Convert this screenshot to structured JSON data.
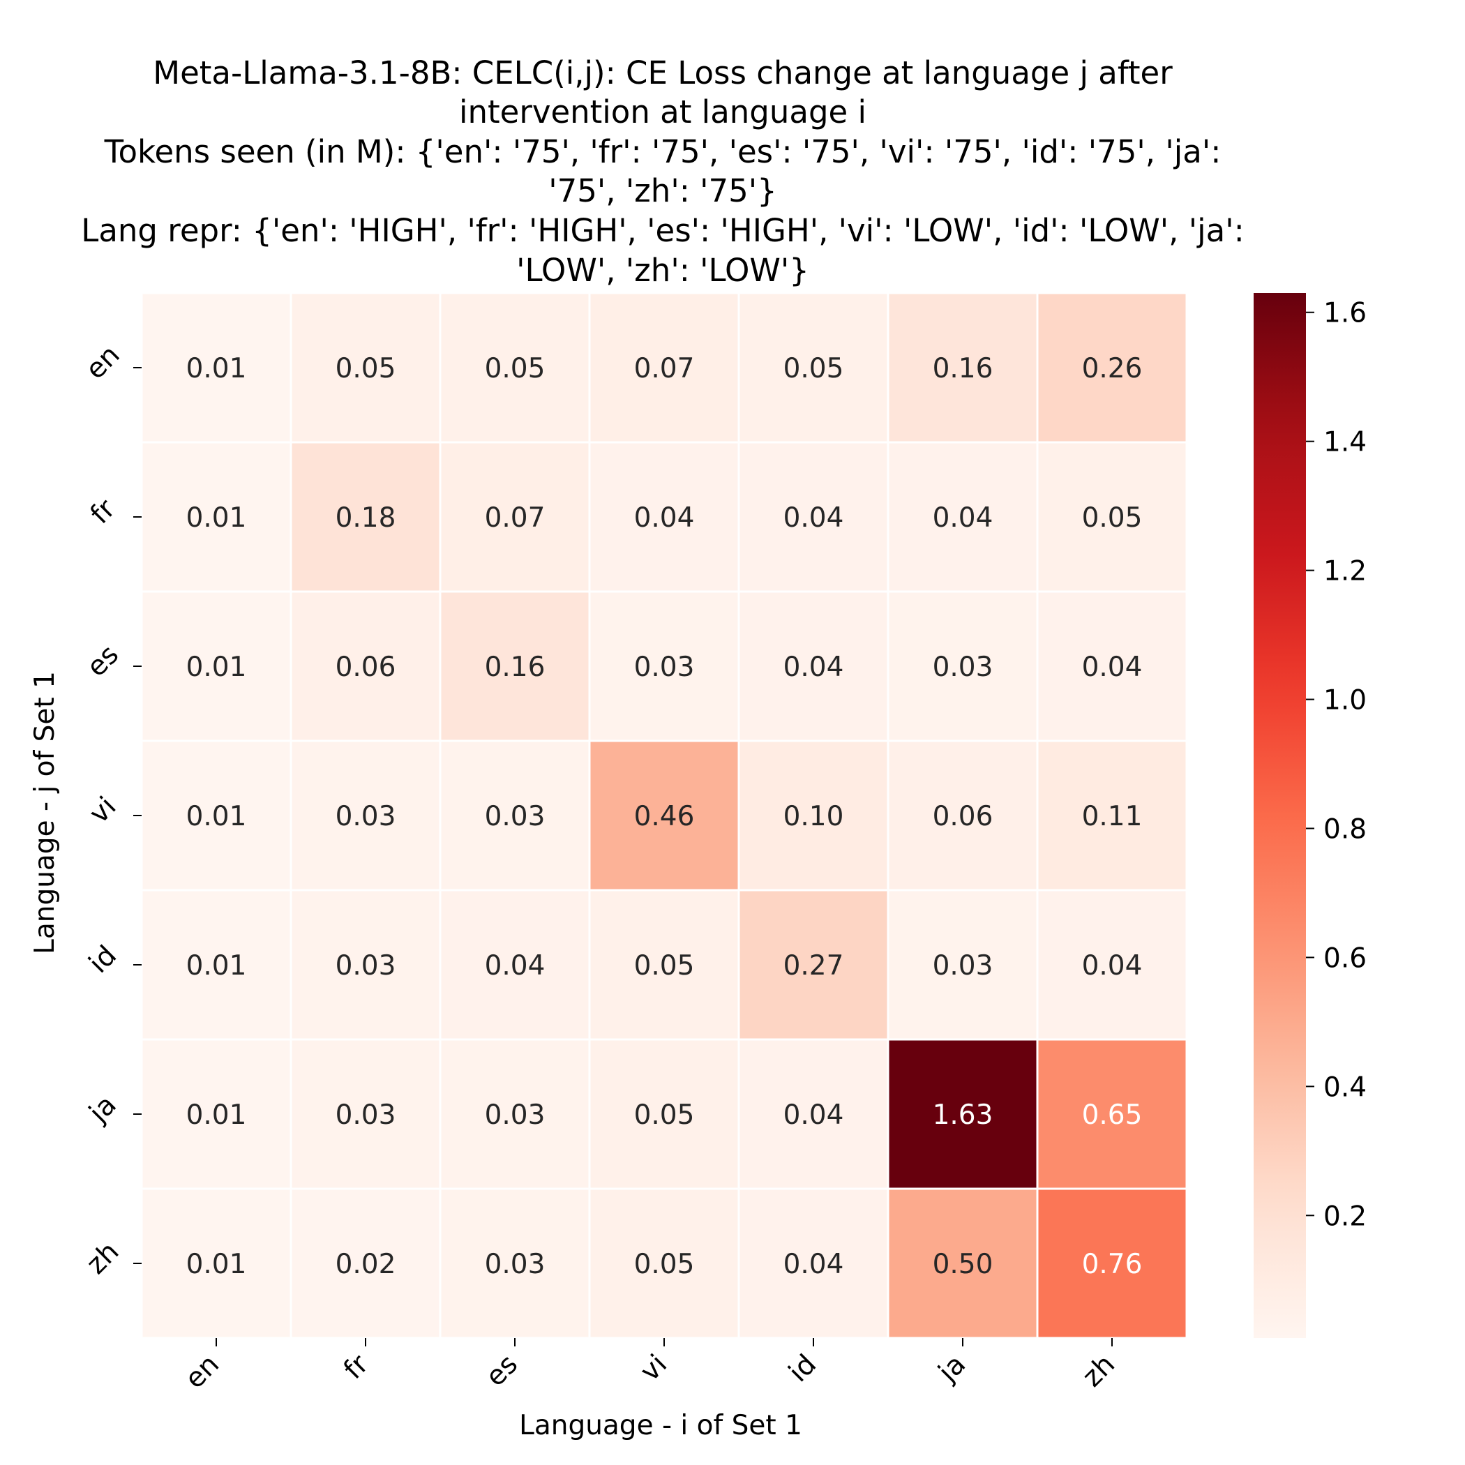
{
  "chart_data": {
    "type": "heatmap",
    "title_lines": [
      "Meta-Llama-3.1-8B: CELC(i,j): CE Loss change at language j after",
      "intervention at language i",
      "Tokens seen (in M): {'en': '75', 'fr': '75', 'es': '75', 'vi': '75', 'id': '75', 'ja':",
      "'75', 'zh': '75'}",
      "Lang repr: {'en': 'HIGH', 'fr': 'HIGH', 'es': 'HIGH', 'vi': 'LOW', 'id': 'LOW', 'ja':",
      "'LOW', 'zh': 'LOW'}"
    ],
    "xlabel": "Language - i of Set 1",
    "ylabel": "Language - j of Set 1",
    "x_categories": [
      "en",
      "fr",
      "es",
      "vi",
      "id",
      "ja",
      "zh"
    ],
    "y_categories": [
      "en",
      "fr",
      "es",
      "vi",
      "id",
      "ja",
      "zh"
    ],
    "values": [
      [
        0.01,
        0.05,
        0.05,
        0.07,
        0.05,
        0.16,
        0.26
      ],
      [
        0.01,
        0.18,
        0.07,
        0.04,
        0.04,
        0.04,
        0.05
      ],
      [
        0.01,
        0.06,
        0.16,
        0.03,
        0.04,
        0.03,
        0.04
      ],
      [
        0.01,
        0.03,
        0.03,
        0.46,
        0.1,
        0.06,
        0.11
      ],
      [
        0.01,
        0.03,
        0.04,
        0.05,
        0.27,
        0.03,
        0.04
      ],
      [
        0.01,
        0.03,
        0.03,
        0.05,
        0.04,
        1.63,
        0.65
      ],
      [
        0.01,
        0.02,
        0.03,
        0.05,
        0.04,
        0.5,
        0.76
      ]
    ],
    "value_labels": [
      [
        "0.01",
        "0.05",
        "0.05",
        "0.07",
        "0.05",
        "0.16",
        "0.26"
      ],
      [
        "0.01",
        "0.18",
        "0.07",
        "0.04",
        "0.04",
        "0.04",
        "0.05"
      ],
      [
        "0.01",
        "0.06",
        "0.16",
        "0.03",
        "0.04",
        "0.03",
        "0.04"
      ],
      [
        "0.01",
        "0.03",
        "0.03",
        "0.46",
        "0.10",
        "0.06",
        "0.11"
      ],
      [
        "0.01",
        "0.03",
        "0.04",
        "0.05",
        "0.27",
        "0.03",
        "0.04"
      ],
      [
        "0.01",
        "0.03",
        "0.03",
        "0.05",
        "0.04",
        "1.63",
        "0.65"
      ],
      [
        "0.01",
        "0.02",
        "0.03",
        "0.05",
        "0.04",
        "0.50",
        "0.76"
      ]
    ],
    "colormap": "Reds",
    "colorbar": {
      "range": [
        0.01,
        1.63
      ],
      "ticks": [
        0.2,
        0.4,
        0.6,
        0.8,
        1.0,
        1.2,
        1.4,
        1.6
      ],
      "tick_labels": [
        "0.2",
        "0.4",
        "0.6",
        "0.8",
        "1.0",
        "1.2",
        "1.4",
        "1.6"
      ],
      "position": "right"
    },
    "grid": false,
    "cell_border_color": "#ffffff"
  }
}
